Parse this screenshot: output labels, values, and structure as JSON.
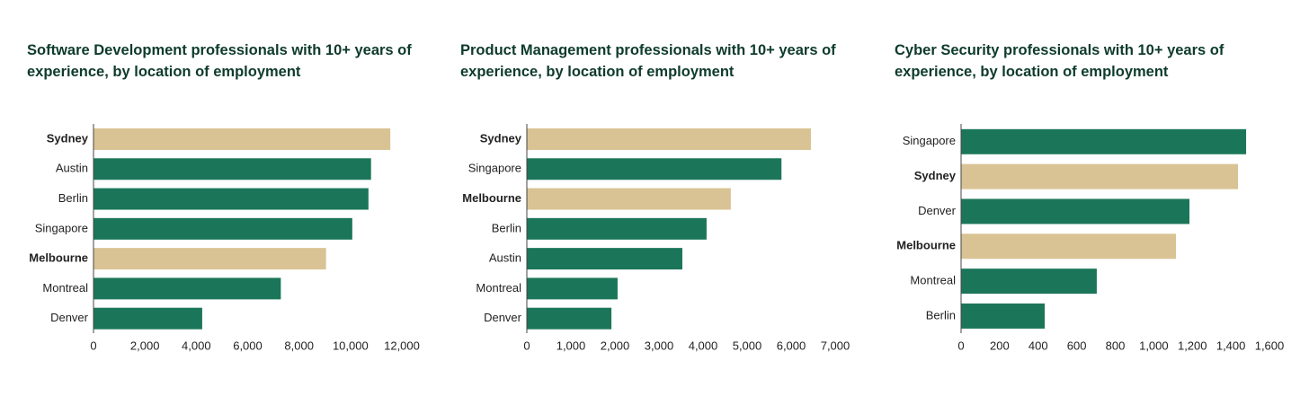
{
  "chart_data": [
    {
      "type": "bar",
      "orientation": "horizontal",
      "title": "Software Development professionals with 10+ years of experience, by location of employment",
      "categories": [
        "Sydney",
        "Austin",
        "Berlin",
        "Singapore",
        "Melbourne",
        "Montreal",
        "Denver"
      ],
      "values": [
        11550,
        10800,
        10700,
        10070,
        9050,
        7290,
        4230
      ],
      "colors": [
        "#d9c394",
        "#1b7659",
        "#1b7659",
        "#1b7659",
        "#d9c394",
        "#1b7659",
        "#1b7659"
      ],
      "highlight_color": "#d9c394",
      "xlim": [
        0,
        12000
      ],
      "xticks": [
        0,
        {
          "value": 2000,
          "label": "2,000"
        },
        {
          "value": 4000,
          "label": "4,000"
        },
        {
          "value": 6000,
          "label": "6,000"
        },
        {
          "value": 8000,
          "label": "8,000"
        },
        {
          "value": 10000,
          "label": "10,000"
        },
        {
          "value": 12000,
          "label": "12,000"
        }
      ]
    },
    {
      "type": "bar",
      "orientation": "horizontal",
      "title": "Product Management professionals with 10+ years of experience, by location of employment",
      "categories": [
        "Sydney",
        "Singapore",
        "Melbourne",
        "Berlin",
        "Austin",
        "Montreal",
        "Denver"
      ],
      "values": [
        6450,
        5780,
        4630,
        4080,
        3530,
        2060,
        1920
      ],
      "colors": [
        "#d9c394",
        "#1b7659",
        "#d9c394",
        "#1b7659",
        "#1b7659",
        "#1b7659",
        "#1b7659"
      ],
      "highlight_color": "#d9c394",
      "xlim": [
        0,
        7000
      ],
      "xticks": [
        0,
        {
          "value": 1000,
          "label": "1,000"
        },
        {
          "value": 2000,
          "label": "2,000"
        },
        {
          "value": 3000,
          "label": "3,000"
        },
        {
          "value": 4000,
          "label": "4,000"
        },
        {
          "value": 5000,
          "label": "5,000"
        },
        {
          "value": 6000,
          "label": "6,000"
        },
        {
          "value": 7000,
          "label": "7,000"
        }
      ]
    },
    {
      "type": "bar",
      "orientation": "horizontal",
      "title": "Cyber Security professionals with 10+ years of experience, by location of employment",
      "categories": [
        "Singapore",
        "Sydney",
        "Denver",
        "Melbourne",
        "Montreal",
        "Berlin"
      ],
      "values": [
        1479,
        1437,
        1185,
        1115,
        704,
        434
      ],
      "colors": [
        "#1b7659",
        "#d9c394",
        "#1b7659",
        "#d9c394",
        "#1b7659",
        "#1b7659"
      ],
      "highlight_color": "#d9c394",
      "xlim": [
        0,
        1600
      ],
      "xticks": [
        0,
        200,
        400,
        600,
        800,
        {
          "value": 1000,
          "label": "1,000"
        },
        {
          "value": 1200,
          "label": "1,200"
        },
        {
          "value": 1400,
          "label": "1,400"
        },
        {
          "value": 1600,
          "label": "1,600"
        }
      ]
    }
  ]
}
